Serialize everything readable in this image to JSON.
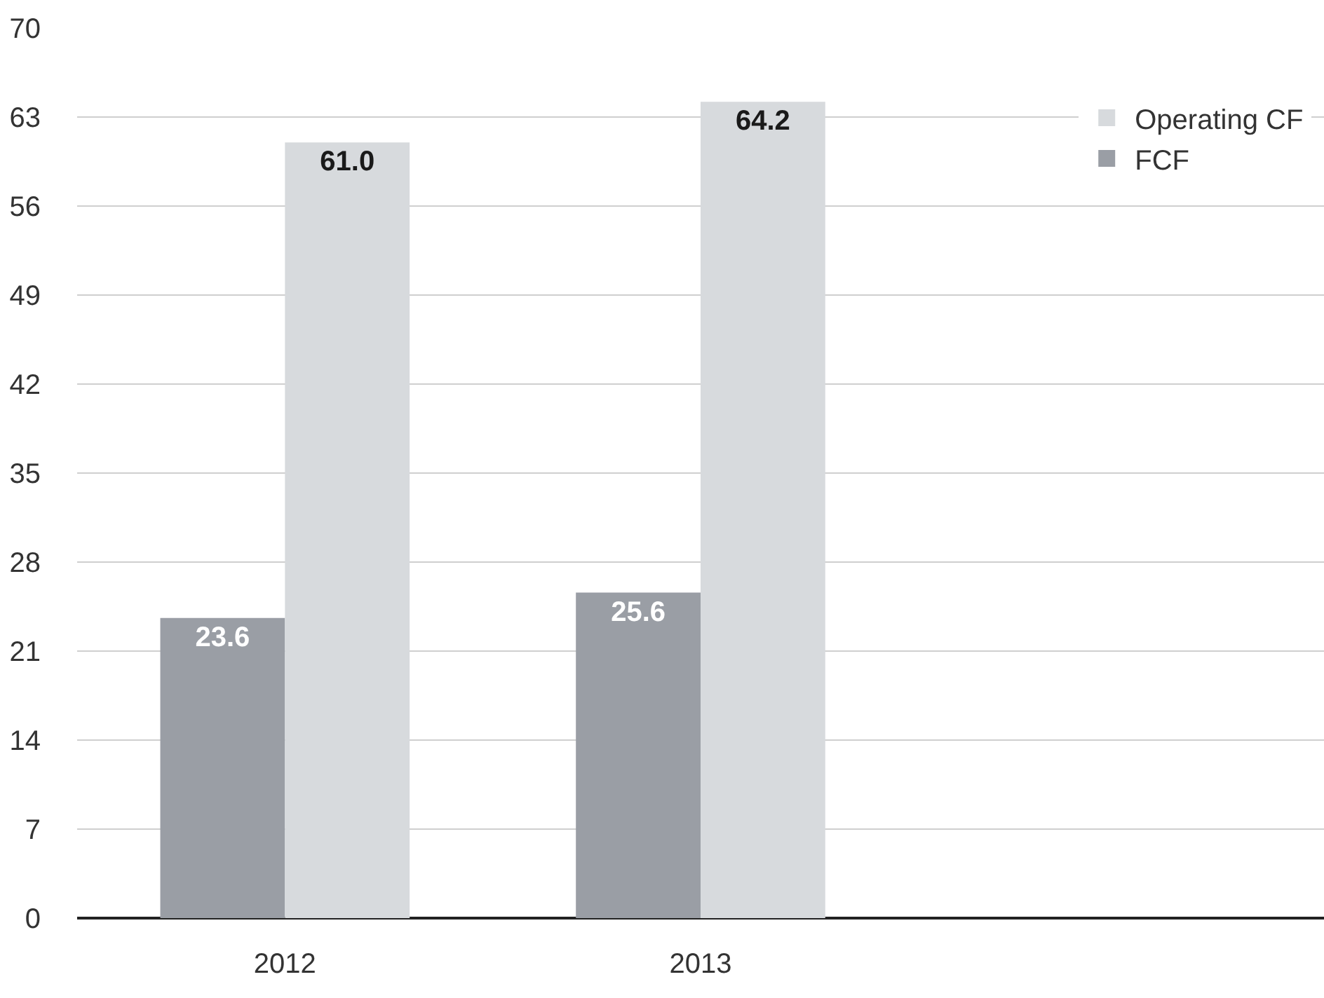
{
  "chart_data": {
    "type": "bar",
    "categories": [
      "2012",
      "2013"
    ],
    "series": [
      {
        "name": "FCF",
        "color": "#9a9ea5",
        "values": [
          23.6,
          25.6
        ],
        "value_labels": [
          "23.6",
          "25.6"
        ]
      },
      {
        "name": "Operating CF",
        "color": "#d7dadd",
        "values": [
          61.0,
          64.2
        ],
        "value_labels": [
          "61.0",
          "64.2"
        ]
      }
    ],
    "ylim": [
      0,
      70
    ],
    "yticks": [
      0,
      7,
      14,
      21,
      28,
      35,
      42,
      49,
      56,
      63,
      70
    ],
    "grid": "y",
    "legend": "top right"
  }
}
